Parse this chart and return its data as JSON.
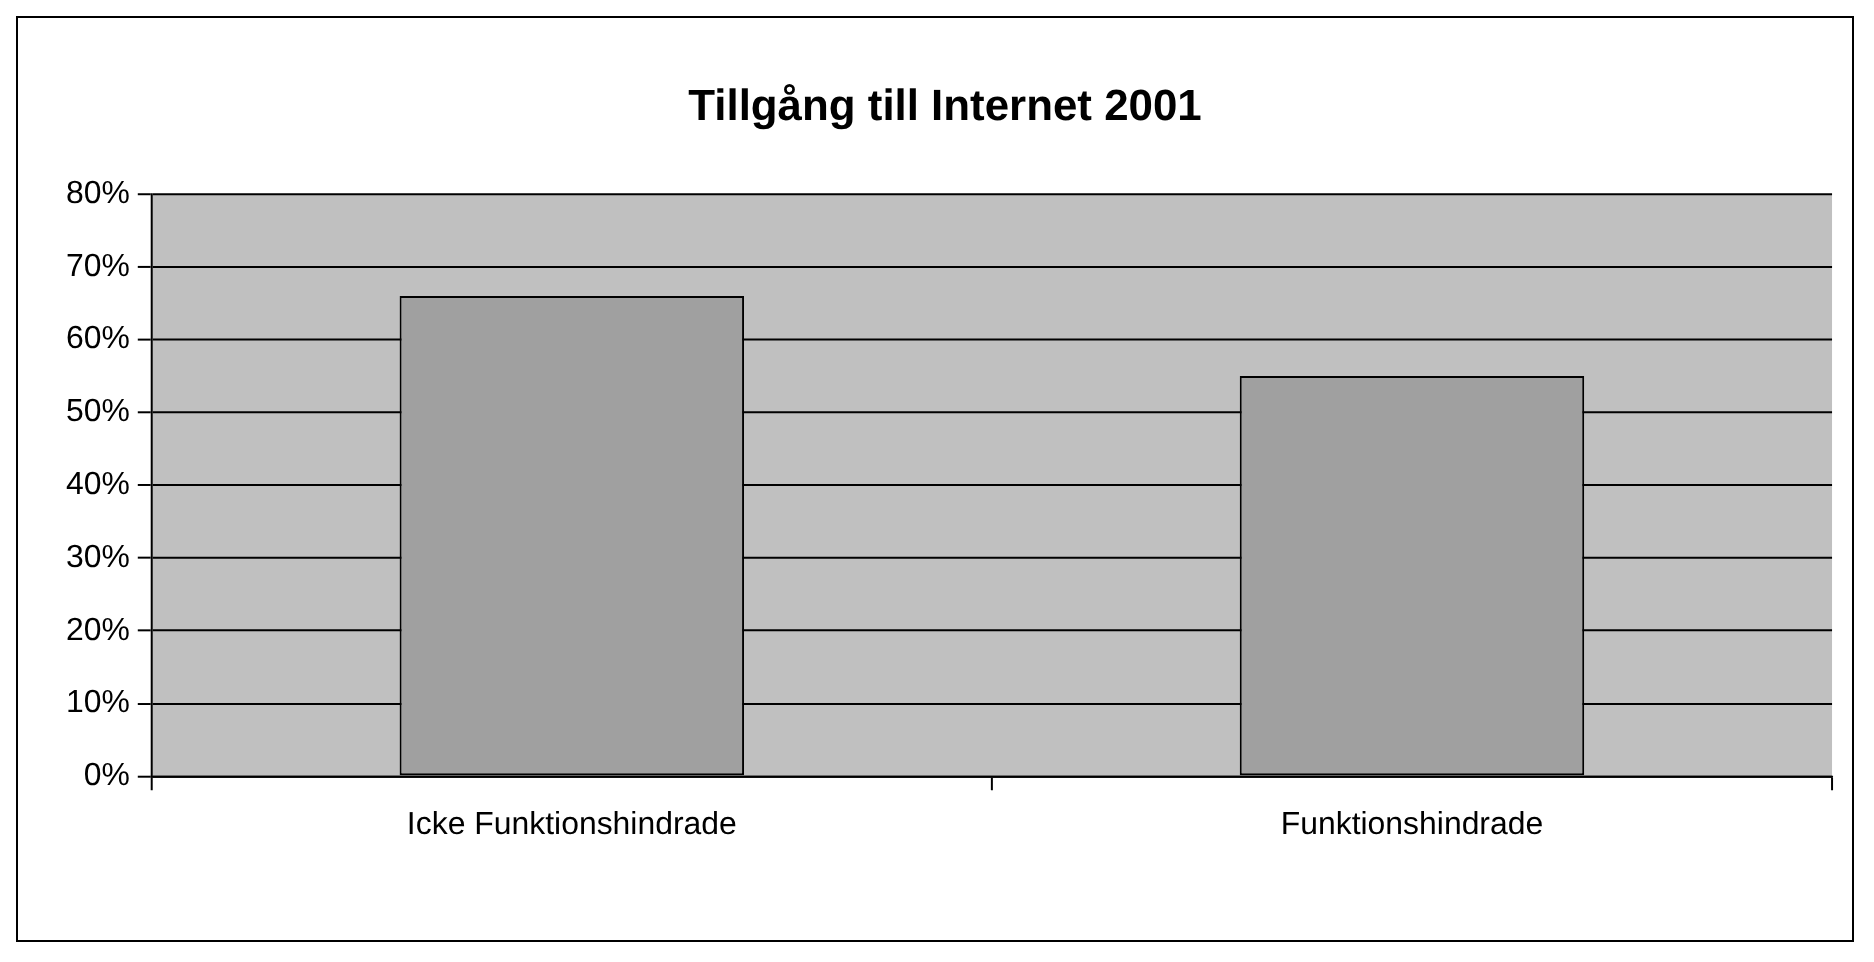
{
  "chart_data": {
    "type": "bar",
    "title": "Tillgång till Internet 2001",
    "categories": [
      "Icke Funktionshindrade",
      "Funktionshindrade"
    ],
    "values": [
      66,
      55
    ],
    "color": "#a0a0a0",
    "ylim": [
      0,
      80
    ],
    "yticks": [
      {
        "value": 0,
        "label": "0%"
      },
      {
        "value": 10,
        "label": "10%"
      },
      {
        "value": 20,
        "label": "20%"
      },
      {
        "value": 30,
        "label": "30%"
      },
      {
        "value": 40,
        "label": "40%"
      },
      {
        "value": 50,
        "label": "50%"
      },
      {
        "value": 60,
        "label": "60%"
      },
      {
        "value": 70,
        "label": "70%"
      },
      {
        "value": 80,
        "label": "80%"
      }
    ],
    "grid": "y",
    "legend": false
  }
}
